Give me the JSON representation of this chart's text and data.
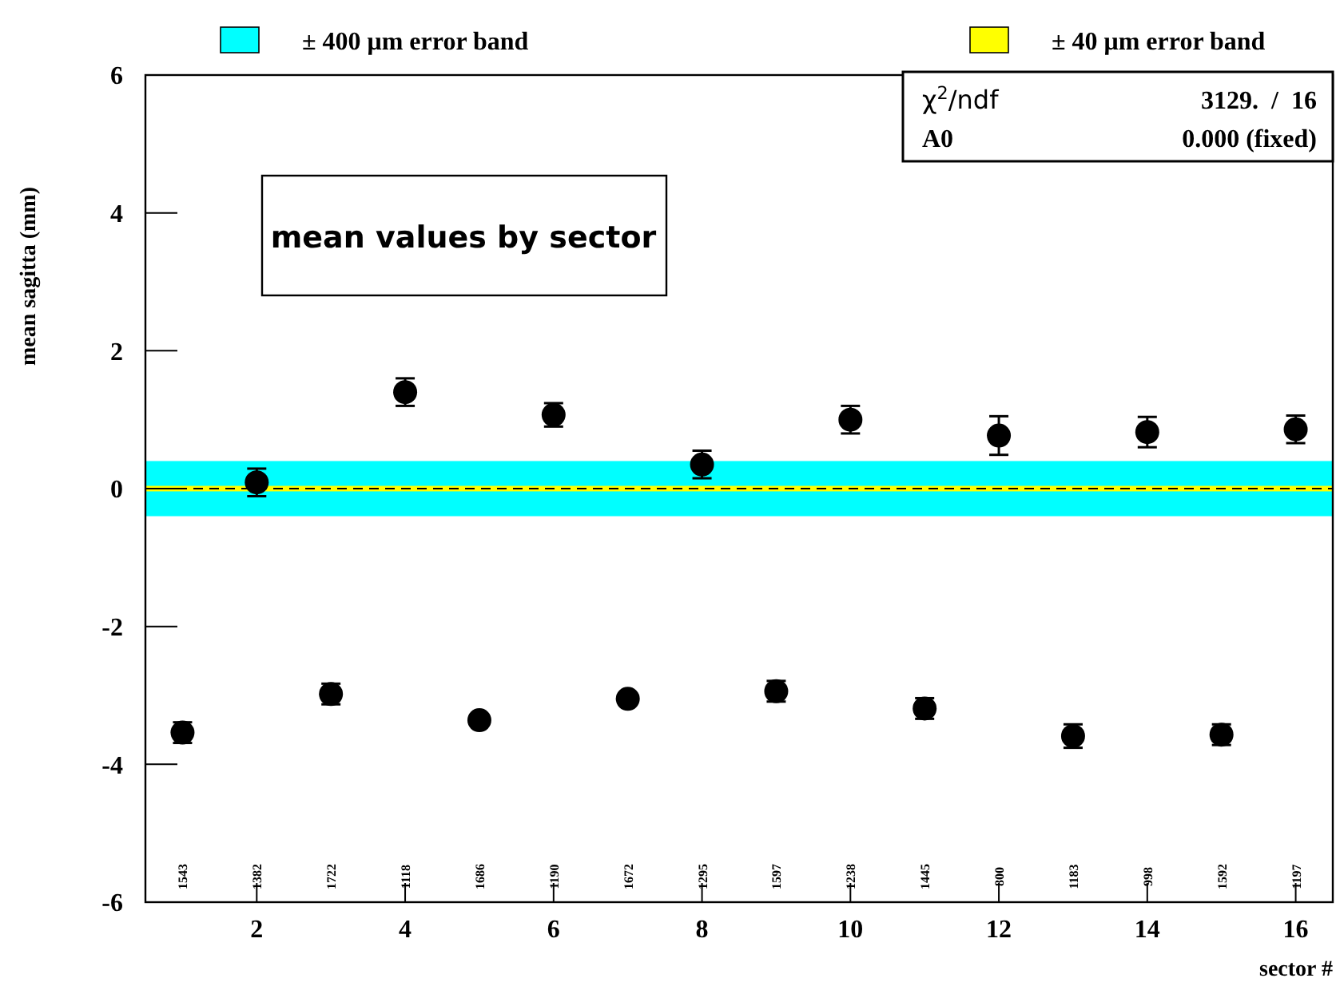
{
  "chart_data": {
    "type": "scatter",
    "title": "mean values by sector",
    "xlabel": "sector #",
    "ylabel": "mean sagitta (mm)",
    "x": [
      1,
      2,
      3,
      4,
      5,
      6,
      7,
      8,
      9,
      10,
      11,
      12,
      13,
      14,
      15,
      16
    ],
    "series": [
      {
        "color": "#000000",
        "marker": "circle",
        "values": [
          -3.54,
          0.09,
          -2.98,
          1.4,
          -3.36,
          1.07,
          -3.05,
          0.35,
          -2.94,
          1.0,
          -3.19,
          0.77,
          -3.59,
          0.82,
          -3.57,
          0.86
        ],
        "errors": [
          0.15,
          0.2,
          0.15,
          0.2,
          0.05,
          0.17,
          0.05,
          0.2,
          0.15,
          0.2,
          0.15,
          0.28,
          0.17,
          0.22,
          0.15,
          0.2
        ]
      }
    ],
    "xlim": [
      0.5,
      16.5
    ],
    "xticks": [
      2,
      4,
      6,
      8,
      10,
      12,
      14,
      16
    ],
    "ylim": [
      -6,
      6
    ],
    "yticks": [
      -6,
      -4,
      -2,
      0,
      2,
      4,
      6
    ],
    "bands": [
      {
        "axis": "y",
        "from": -0.4,
        "to": 0.4,
        "label": "± 400 μm error band",
        "color": "#00ffff"
      },
      {
        "axis": "y",
        "from": -0.04,
        "to": 0.04,
        "label": "± 40 μm error band",
        "color": "#ffff00"
      }
    ],
    "ref_lines": [
      {
        "axis": "y",
        "value": 0,
        "color": "#000000",
        "line_style": "dashed"
      }
    ],
    "legend": "top",
    "annotations": [
      "χ$^{2}$/ndf",
      "3129.  /  16",
      "A0",
      "0.000 (fixed)",
      "1543",
      "1382",
      "1722",
      "1118",
      "1686",
      "1190",
      "1672",
      "1295",
      "1597",
      "1238",
      "1445",
      "800",
      "1183",
      "998",
      "1592",
      "1197"
    ]
  }
}
